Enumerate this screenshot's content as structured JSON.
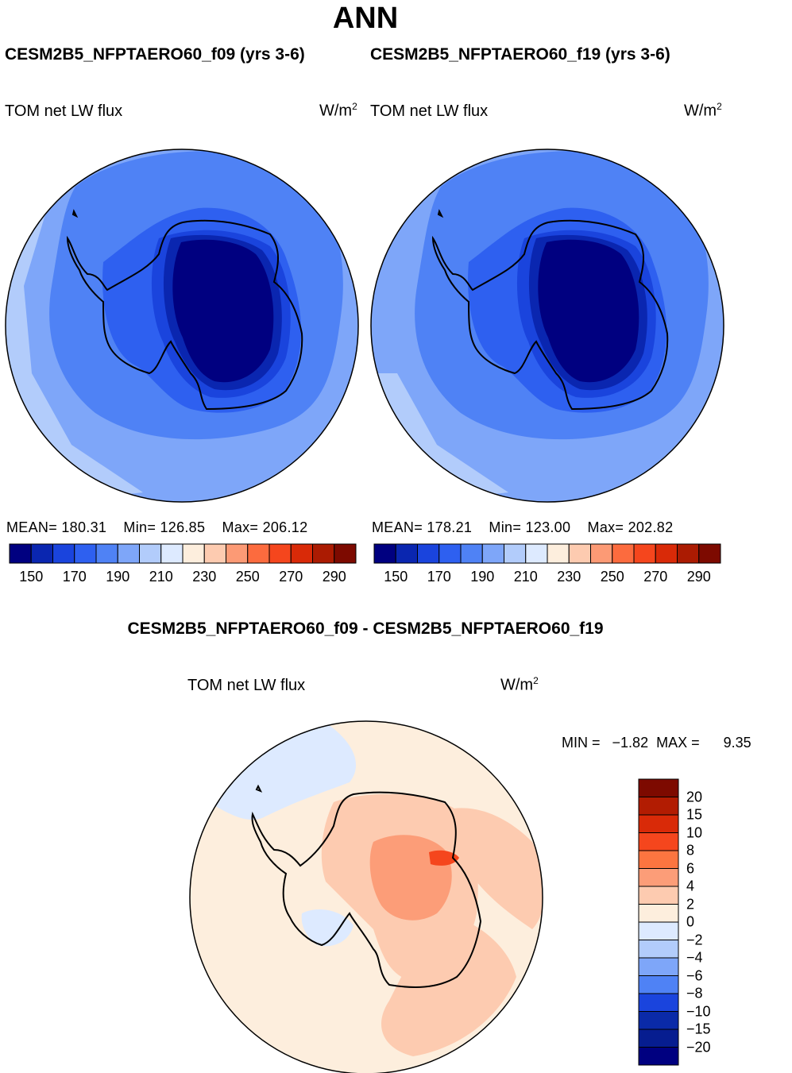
{
  "header": {
    "title": "ANN"
  },
  "panels": [
    {
      "case": "CESM2B5_NFPTAERO60_f09 (yrs 3-6)",
      "variable": "TOM net LW flux",
      "units_base": "W/m",
      "units_exp": "2",
      "stats": {
        "mean_label": "MEAN=",
        "mean": "180.31",
        "min_label": "Min=",
        "min": "126.85",
        "max_label": "Max=",
        "max": "206.12"
      }
    },
    {
      "case": "CESM2B5_NFPTAERO60_f19 (yrs 3-6)",
      "variable": "TOM net LW flux",
      "units_base": "W/m",
      "units_exp": "2",
      "stats": {
        "mean_label": "MEAN=",
        "mean": "178.21",
        "min_label": "Min=",
        "min": "123.00",
        "max_label": "Max=",
        "max": "202.82"
      }
    }
  ],
  "colorbar_top": {
    "colors": [
      "#000080",
      "#0a26b0",
      "#1a44dd",
      "#2e60f0",
      "#4f82f5",
      "#7ea6f9",
      "#b2ccfb",
      "#ddeaff",
      "#fdeedd",
      "#fdcbb0",
      "#fc9a75",
      "#fc6b3e",
      "#f5461d",
      "#d92a08",
      "#ab1b02",
      "#7d0a00"
    ],
    "ticks": [
      "150",
      "170",
      "190",
      "210",
      "230",
      "250",
      "270",
      "290"
    ]
  },
  "difference": {
    "title": "CESM2B5_NFPTAERO60_f09 - CESM2B5_NFPTAERO60_f19",
    "variable": "TOM net LW flux",
    "units_base": "W/m",
    "units_exp": "2",
    "min_label": "MIN =",
    "min": "−1.82",
    "max_label": "MAX =",
    "max": "9.35",
    "colorbar": {
      "colors_top_to_bottom": [
        "#7d0a00",
        "#b21c02",
        "#d92a08",
        "#f5461d",
        "#fc7540",
        "#fc9d78",
        "#fdcbb0",
        "#fdeedd",
        "#ddeaff",
        "#b2ccfb",
        "#7ea6f9",
        "#4f82f5",
        "#1a44dd",
        "#0a2aa8",
        "#061d90",
        "#000080"
      ],
      "ticks": [
        "20",
        "15",
        "10",
        "8",
        "6",
        "4",
        "2",
        "0",
        "−2",
        "−4",
        "−6",
        "−8",
        "−10",
        "−15",
        "−20"
      ]
    }
  },
  "chart_data": [
    {
      "type": "map",
      "projection": "south-polar-stereographic",
      "title": "CESM2B5_NFPTAERO60_f09 (yrs 3-6)",
      "variable": "TOM net LW flux",
      "units": "W/m2",
      "mean": 180.31,
      "min": 126.85,
      "max": 206.12,
      "contour_levels": [
        150,
        160,
        170,
        180,
        190,
        200,
        210,
        220,
        230,
        240,
        250,
        260,
        270,
        280,
        290
      ]
    },
    {
      "type": "map",
      "projection": "south-polar-stereographic",
      "title": "CESM2B5_NFPTAERO60_f19 (yrs 3-6)",
      "variable": "TOM net LW flux",
      "units": "W/m2",
      "mean": 178.21,
      "min": 123.0,
      "max": 202.82,
      "contour_levels": [
        150,
        160,
        170,
        180,
        190,
        200,
        210,
        220,
        230,
        240,
        250,
        260,
        270,
        280,
        290
      ]
    },
    {
      "type": "map",
      "projection": "south-polar-stereographic",
      "title": "CESM2B5_NFPTAERO60_f09 - CESM2B5_NFPTAERO60_f19",
      "variable": "TOM net LW flux",
      "units": "W/m2",
      "min": -1.82,
      "max": 9.35,
      "contour_levels": [
        -20,
        -15,
        -10,
        -8,
        -6,
        -4,
        -2,
        0,
        2,
        4,
        6,
        8,
        10,
        15,
        20
      ]
    }
  ]
}
